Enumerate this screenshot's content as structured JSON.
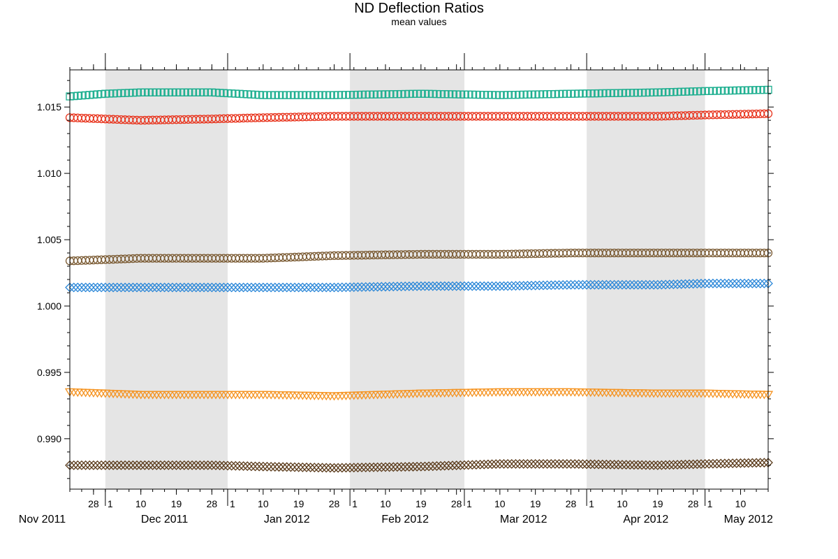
{
  "chart_data": {
    "type": "scatter",
    "title": "ND Deflection Ratios",
    "subtitle": "mean values",
    "x_start": "2011-11-22",
    "x_end": "2012-05-17",
    "ylim": [
      0.9862,
      1.0178
    ],
    "y_ticks": [
      "0.990",
      "0.995",
      "1.000",
      "1.005",
      "1.010",
      "1.015"
    ],
    "x_tick_days": [
      {
        "date": "2011-11-28",
        "label": "28"
      },
      {
        "date": "2011-12-01",
        "label": "1"
      },
      {
        "date": "2011-12-10",
        "label": "10"
      },
      {
        "date": "2011-12-19",
        "label": "19"
      },
      {
        "date": "2011-12-28",
        "label": "28"
      },
      {
        "date": "2012-01-01",
        "label": "1"
      },
      {
        "date": "2012-01-10",
        "label": "10"
      },
      {
        "date": "2012-01-19",
        "label": "19"
      },
      {
        "date": "2012-01-28",
        "label": "28"
      },
      {
        "date": "2012-02-01",
        "label": "1"
      },
      {
        "date": "2012-02-10",
        "label": "10"
      },
      {
        "date": "2012-02-19",
        "label": "19"
      },
      {
        "date": "2012-02-28",
        "label": "28"
      },
      {
        "date": "2012-03-01",
        "label": "1"
      },
      {
        "date": "2012-03-10",
        "label": "10"
      },
      {
        "date": "2012-03-19",
        "label": "19"
      },
      {
        "date": "2012-03-28",
        "label": "28"
      },
      {
        "date": "2012-04-01",
        "label": "1"
      },
      {
        "date": "2012-04-10",
        "label": "10"
      },
      {
        "date": "2012-04-19",
        "label": "19"
      },
      {
        "date": "2012-04-28",
        "label": "28"
      },
      {
        "date": "2012-05-01",
        "label": "1"
      },
      {
        "date": "2012-05-10",
        "label": "10"
      }
    ],
    "x_month_labels": [
      {
        "date": "2011-11-15",
        "label": "Nov 2011"
      },
      {
        "date": "2011-12-16",
        "label": "Dec 2011"
      },
      {
        "date": "2012-01-16",
        "label": "Jan 2012"
      },
      {
        "date": "2012-02-15",
        "label": "Feb 2012"
      },
      {
        "date": "2012-03-16",
        "label": "Mar 2012"
      },
      {
        "date": "2012-04-16",
        "label": "Apr 2012"
      },
      {
        "date": "2012-05-12",
        "label": "May 2012"
      }
    ],
    "shaded_months": [
      {
        "start": "2011-12-01",
        "end": "2012-01-01"
      },
      {
        "start": "2012-02-01",
        "end": "2012-03-01"
      },
      {
        "start": "2012-04-01",
        "end": "2012-05-01"
      }
    ],
    "grid": false,
    "legend": "none",
    "shade_color": "#e5e5e5",
    "series": [
      {
        "color": "#1aae8e",
        "marker": "square",
        "x": [
          "2011-11-22",
          "2011-12-01",
          "2011-12-10",
          "2011-12-28",
          "2012-01-10",
          "2012-01-28",
          "2012-02-19",
          "2012-03-10",
          "2012-03-28",
          "2012-04-19",
          "2012-05-01",
          "2012-05-17"
        ],
        "y": [
          1.0158,
          1.016,
          1.0161,
          1.0161,
          1.0159,
          1.0159,
          1.016,
          1.0159,
          1.016,
          1.0161,
          1.0162,
          1.0163
        ]
      },
      {
        "color": "#e8331c",
        "marker": "circle",
        "x": [
          "2011-11-22",
          "2011-12-01",
          "2011-12-10",
          "2011-12-28",
          "2012-01-10",
          "2012-01-28",
          "2012-02-19",
          "2012-03-10",
          "2012-03-28",
          "2012-04-19",
          "2012-05-01",
          "2012-05-17"
        ],
        "y": [
          1.0142,
          1.0141,
          1.014,
          1.0141,
          1.0142,
          1.0143,
          1.0143,
          1.0143,
          1.0143,
          1.0143,
          1.0144,
          1.0145
        ]
      },
      {
        "color": "#7a5a32",
        "marker": "circle",
        "x": [
          "2011-11-22",
          "2011-12-01",
          "2011-12-10",
          "2011-12-28",
          "2012-01-10",
          "2012-01-28",
          "2012-02-19",
          "2012-03-10",
          "2012-03-28",
          "2012-04-19",
          "2012-05-01",
          "2012-05-17"
        ],
        "y": [
          1.0034,
          1.0035,
          1.0036,
          1.0036,
          1.0036,
          1.0038,
          1.0039,
          1.0039,
          1.004,
          1.004,
          1.004,
          1.004
        ]
      },
      {
        "color": "#2b87d8",
        "marker": "diamond",
        "x": [
          "2011-11-22",
          "2011-12-01",
          "2011-12-10",
          "2011-12-28",
          "2012-01-10",
          "2012-01-28",
          "2012-02-19",
          "2012-03-10",
          "2012-03-28",
          "2012-04-19",
          "2012-05-01",
          "2012-05-17"
        ],
        "y": [
          1.0014,
          1.0014,
          1.0014,
          1.0014,
          1.0014,
          1.0014,
          1.0015,
          1.0015,
          1.0016,
          1.0016,
          1.0017,
          1.0017
        ]
      },
      {
        "color": "#f5921e",
        "marker": "triangle",
        "x": [
          "2011-11-22",
          "2011-12-01",
          "2011-12-10",
          "2011-12-28",
          "2012-01-10",
          "2012-01-28",
          "2012-02-19",
          "2012-03-10",
          "2012-03-28",
          "2012-04-19",
          "2012-05-01",
          "2012-05-17"
        ],
        "y": [
          0.9935,
          0.9934,
          0.9933,
          0.9933,
          0.9933,
          0.9932,
          0.9934,
          0.9935,
          0.9935,
          0.9934,
          0.9934,
          0.9933
        ]
      },
      {
        "color": "#5a3a1a",
        "marker": "diamond",
        "x": [
          "2011-11-22",
          "2011-12-01",
          "2011-12-10",
          "2011-12-28",
          "2012-01-10",
          "2012-01-28",
          "2012-02-19",
          "2012-03-10",
          "2012-03-28",
          "2012-04-19",
          "2012-05-01",
          "2012-05-17"
        ],
        "y": [
          0.988,
          0.988,
          0.988,
          0.988,
          0.9879,
          0.9878,
          0.9879,
          0.9881,
          0.9881,
          0.988,
          0.9881,
          0.9882
        ]
      }
    ]
  }
}
